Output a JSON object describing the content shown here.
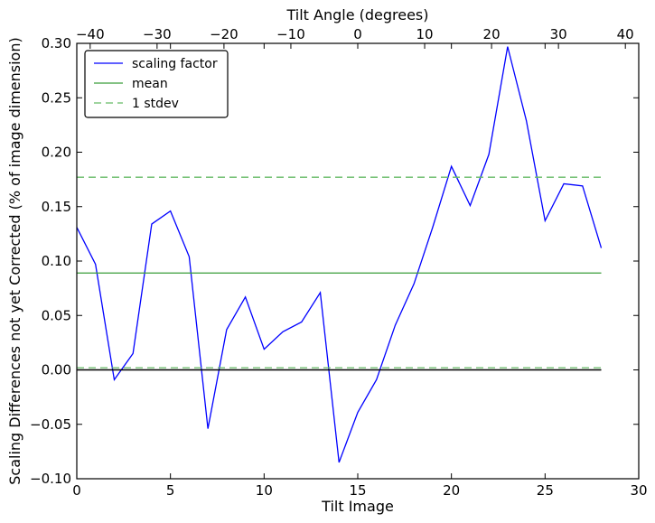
{
  "chart_data": {
    "type": "line",
    "xlabel": "Tilt Image",
    "ylabel": "Scaling Differences not yet Corrected (% of image dimension)",
    "x2label": "Tilt Angle (degrees)",
    "xlim": [
      0,
      30
    ],
    "ylim": [
      -0.1,
      0.3
    ],
    "x2lim": [
      -42,
      42
    ],
    "xticks": [
      0,
      5,
      10,
      15,
      20,
      25,
      30
    ],
    "yticks": [
      "-0.10",
      "-0.05",
      "0.00",
      "0.05",
      "0.10",
      "0.15",
      "0.20",
      "0.25",
      "0.30"
    ],
    "x2ticks": [
      -40,
      -30,
      -20,
      -10,
      0,
      10,
      20,
      30,
      40
    ],
    "legend_position": "upper-left",
    "grid": false,
    "series": [
      {
        "name": "scaling factor",
        "color": "#0000ff",
        "style": "solid",
        "x": [
          0,
          1,
          2,
          3,
          4,
          5,
          6,
          7,
          8,
          9,
          10,
          11,
          12,
          13,
          14,
          15,
          16,
          17,
          18,
          19,
          20,
          21,
          22,
          23,
          24,
          25,
          26,
          27,
          28
        ],
        "y": [
          0.131,
          0.097,
          -0.009,
          0.015,
          0.134,
          0.146,
          0.104,
          -0.054,
          0.037,
          0.067,
          0.019,
          0.035,
          0.044,
          0.071,
          -0.085,
          -0.039,
          -0.009,
          0.041,
          0.079,
          0.131,
          0.187,
          0.151,
          0.198,
          0.297,
          0.229,
          0.137,
          0.171,
          0.169,
          0.112
        ]
      },
      {
        "name": "mean",
        "color": "#3a9e3a",
        "style": "solid",
        "x": [
          0,
          28
        ],
        "y": [
          0.089,
          0.089
        ]
      },
      {
        "name": "1 stdev",
        "color": "#66bb66",
        "style": "dashed",
        "x": [
          0,
          28
        ],
        "y": [
          0.177,
          0.177
        ]
      },
      {
        "x": [
          0,
          28
        ],
        "y": [
          0.002,
          0.002
        ],
        "color": "#66bb66",
        "style": "dashed"
      },
      {
        "x": [
          0,
          28
        ],
        "y": [
          0.0,
          0.0
        ],
        "color": "#000000",
        "style": "solid"
      }
    ]
  }
}
